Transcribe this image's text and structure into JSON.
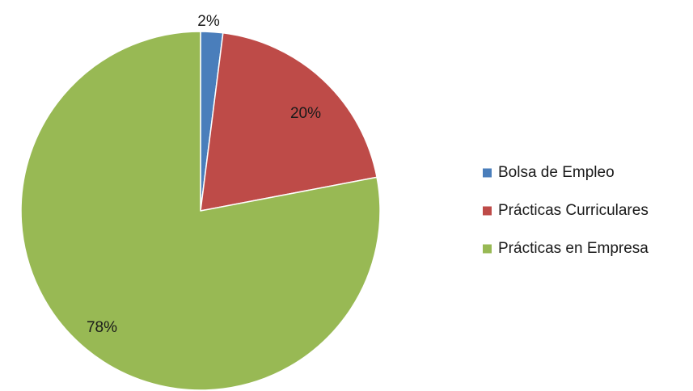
{
  "chart_data": {
    "type": "pie",
    "categories": [
      "Bolsa de Empleo",
      "Prácticas Curriculares",
      "Prácticas en Empresa"
    ],
    "values": [
      2,
      20,
      78
    ],
    "data_labels": [
      "2%",
      "20%",
      "78%"
    ],
    "colors": [
      "#4a7ebb",
      "#be4b48",
      "#98b954"
    ],
    "start_angle_deg": 0,
    "direction": "clockwise",
    "legend_position": "right",
    "title": ""
  }
}
